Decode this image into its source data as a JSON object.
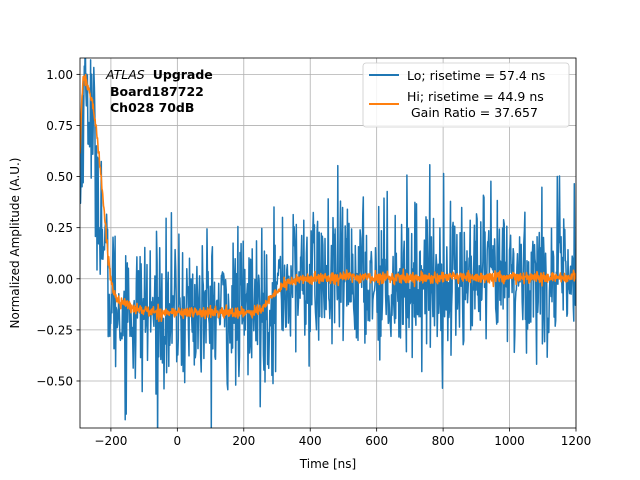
{
  "chart_data": {
    "type": "line",
    "xlabel": "Time [ns]",
    "ylabel": "Normalized Amplitude (A.U.)",
    "xlim": [
      -293,
      1200
    ],
    "ylim": [
      -0.73,
      1.08
    ],
    "grid": true,
    "x_ticks": [
      -200,
      0,
      200,
      400,
      600,
      800,
      1000,
      1200
    ],
    "x_tick_labels": [
      "−200",
      "0",
      "200",
      "400",
      "600",
      "800",
      "1000",
      "1200"
    ],
    "y_ticks": [
      -0.5,
      -0.25,
      0.0,
      0.25,
      0.5,
      0.75,
      1.0
    ],
    "y_tick_labels": [
      "−0.50",
      "−0.25",
      "0.00",
      "0.25",
      "0.50",
      "0.75",
      "1.00"
    ],
    "annotation": {
      "line1_italic": "ATLAS",
      "line1_bold": "Upgrade",
      "line2": "Board187722",
      "line3": "Ch028 70dB"
    },
    "legend": {
      "placement": "top-right",
      "entries": [
        {
          "label": "Lo; risetime = 57.4 ns",
          "color": "#1f77b4"
        },
        {
          "label": "Hi; risetime = 44.9 ns",
          "label2": " Gain Ratio = 37.657",
          "color": "#ff7f0e"
        }
      ]
    },
    "series": [
      {
        "name": "Lo; risetime = 57.4 ns",
        "color": "#1f77b4",
        "noise_amplitude": 0.3,
        "x": [
          -293,
          -285,
          -275,
          -262,
          -250,
          -240,
          -230,
          -220,
          -210,
          -200,
          -180,
          -150,
          -100,
          -50,
          0,
          100,
          200,
          250,
          280,
          320,
          400,
          600,
          800,
          1000,
          1200
        ],
        "y": [
          0.35,
          0.85,
          0.95,
          0.8,
          0.65,
          0.48,
          0.3,
          0.13,
          -0.02,
          -0.1,
          -0.15,
          -0.16,
          -0.16,
          -0.16,
          -0.16,
          -0.16,
          -0.16,
          -0.15,
          -0.1,
          -0.03,
          0.0,
          0.0,
          0.0,
          0.0,
          0.0
        ]
      },
      {
        "name": "Hi; risetime = 44.9 ns",
        "color": "#ff7f0e",
        "noise_amplitude": 0.015,
        "x": [
          -293,
          -288,
          -283,
          -278,
          -272,
          -265,
          -255,
          -245,
          -235,
          -225,
          -215,
          -205,
          -195,
          -180,
          -165,
          -150,
          -120,
          -80,
          -40,
          0,
          50,
          100,
          150,
          200,
          230,
          250,
          265,
          280,
          300,
          320,
          350,
          380,
          400,
          450,
          500,
          600,
          800,
          1000,
          1200
        ],
        "y": [
          0.6,
          0.87,
          0.98,
          0.97,
          0.95,
          0.92,
          0.85,
          0.75,
          0.6,
          0.42,
          0.23,
          0.06,
          -0.05,
          -0.1,
          -0.12,
          -0.13,
          -0.15,
          -0.16,
          -0.165,
          -0.165,
          -0.165,
          -0.165,
          -0.165,
          -0.165,
          -0.16,
          -0.15,
          -0.13,
          -0.1,
          -0.06,
          -0.03,
          -0.01,
          0.0,
          0.0,
          0.005,
          0.01,
          0.005,
          0.005,
          0.005,
          0.005
        ]
      }
    ]
  }
}
